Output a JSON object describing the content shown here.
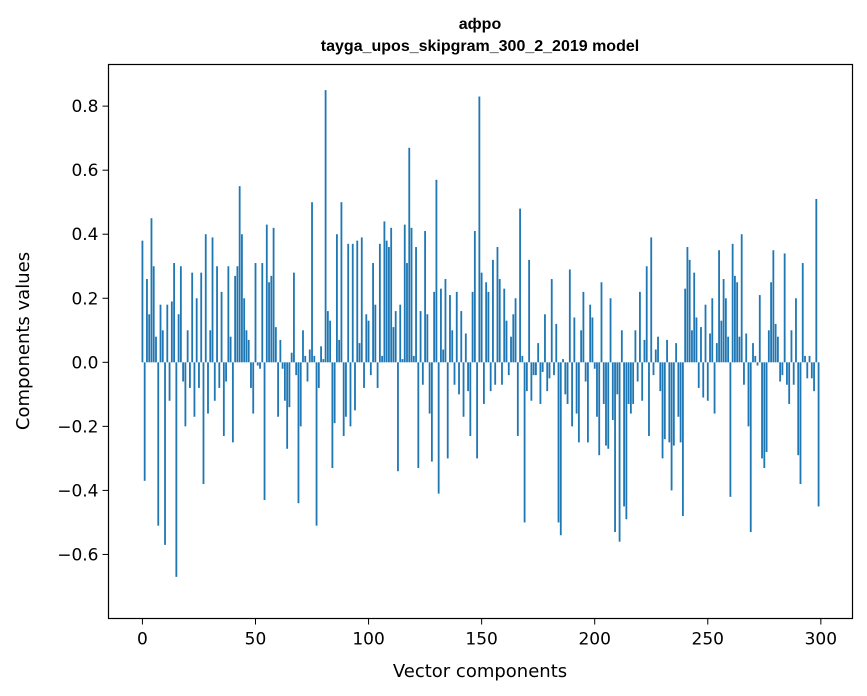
{
  "chart_data": {
    "type": "bar",
    "title": "афро",
    "subtitle": "tayga_upos_skipgram_300_2_2019 model",
    "xlabel": "Vector components",
    "ylabel": "Components values",
    "xlim": [
      -15,
      314
    ],
    "ylim": [
      -0.8,
      0.93
    ],
    "xticks": [
      0,
      50,
      100,
      150,
      200,
      250,
      300
    ],
    "yticks": [
      -0.6,
      -0.4,
      -0.2,
      0.0,
      0.2,
      0.4,
      0.6,
      0.8
    ],
    "ytick_labels": [
      "−0.6",
      "−0.4",
      "−0.2",
      "0.0",
      "0.2",
      "0.4",
      "0.6",
      "0.8"
    ],
    "bar_color": "#1f77b4",
    "x": [
      0,
      1,
      2,
      3,
      4,
      5,
      6,
      7,
      8,
      9,
      10,
      11,
      12,
      13,
      14,
      15,
      16,
      17,
      18,
      19,
      20,
      21,
      22,
      23,
      24,
      25,
      26,
      27,
      28,
      29,
      30,
      31,
      32,
      33,
      34,
      35,
      36,
      37,
      38,
      39,
      40,
      41,
      42,
      43,
      44,
      45,
      46,
      47,
      48,
      49,
      50,
      51,
      52,
      53,
      54,
      55,
      56,
      57,
      58,
      59,
      60,
      61,
      62,
      63,
      64,
      65,
      66,
      67,
      68,
      69,
      70,
      71,
      72,
      73,
      74,
      75,
      76,
      77,
      78,
      79,
      80,
      81,
      82,
      83,
      84,
      85,
      86,
      87,
      88,
      89,
      90,
      91,
      92,
      93,
      94,
      95,
      96,
      97,
      98,
      99,
      100,
      101,
      102,
      103,
      104,
      105,
      106,
      107,
      108,
      109,
      110,
      111,
      112,
      113,
      114,
      115,
      116,
      117,
      118,
      119,
      120,
      121,
      122,
      123,
      124,
      125,
      126,
      127,
      128,
      129,
      130,
      131,
      132,
      133,
      134,
      135,
      136,
      137,
      138,
      139,
      140,
      141,
      142,
      143,
      144,
      145,
      146,
      147,
      148,
      149,
      150,
      151,
      152,
      153,
      154,
      155,
      156,
      157,
      158,
      159,
      160,
      161,
      162,
      163,
      164,
      165,
      166,
      167,
      168,
      169,
      170,
      171,
      172,
      173,
      174,
      175,
      176,
      177,
      178,
      179,
      180,
      181,
      182,
      183,
      184,
      185,
      186,
      187,
      188,
      189,
      190,
      191,
      192,
      193,
      194,
      195,
      196,
      197,
      198,
      199,
      200,
      201,
      202,
      203,
      204,
      205,
      206,
      207,
      208,
      209,
      210,
      211,
      212,
      213,
      214,
      215,
      216,
      217,
      218,
      219,
      220,
      221,
      222,
      223,
      224,
      225,
      226,
      227,
      228,
      229,
      230,
      231,
      232,
      233,
      234,
      235,
      236,
      237,
      238,
      239,
      240,
      241,
      242,
      243,
      244,
      245,
      246,
      247,
      248,
      249,
      250,
      251,
      252,
      253,
      254,
      255,
      256,
      257,
      258,
      259,
      260,
      261,
      262,
      263,
      264,
      265,
      266,
      267,
      268,
      269,
      270,
      271,
      272,
      273,
      274,
      275,
      276,
      277,
      278,
      279,
      280,
      281,
      282,
      283,
      284,
      285,
      286,
      287,
      288,
      289,
      290,
      291,
      292,
      293,
      294,
      295,
      296,
      297,
      298,
      299
    ],
    "values": [
      0.38,
      -0.37,
      0.26,
      0.15,
      0.45,
      0.3,
      0.08,
      -0.51,
      0.18,
      0.1,
      -0.57,
      0.18,
      -0.12,
      0.19,
      0.31,
      -0.67,
      0.15,
      0.3,
      -0.06,
      -0.2,
      0.1,
      -0.08,
      0.28,
      -0.17,
      0.2,
      -0.08,
      0.28,
      -0.38,
      0.4,
      -0.16,
      0.1,
      0.39,
      -0.12,
      0.3,
      -0.08,
      0.22,
      -0.23,
      -0.06,
      0.3,
      0.08,
      -0.25,
      0.27,
      0.3,
      0.55,
      0.4,
      0.2,
      0.1,
      0.07,
      -0.08,
      -0.16,
      0.31,
      -0.01,
      -0.02,
      0.31,
      -0.43,
      0.43,
      0.25,
      0.27,
      0.42,
      0.11,
      -0.17,
      0.07,
      -0.02,
      -0.12,
      -0.27,
      -0.14,
      0.03,
      0.28,
      -0.04,
      -0.44,
      -0.2,
      0.1,
      0.02,
      -0.06,
      0.04,
      0.5,
      0.02,
      -0.51,
      -0.08,
      0.05,
      0.01,
      0.85,
      0.16,
      0.13,
      -0.33,
      -0.19,
      0.4,
      0.07,
      0.5,
      -0.23,
      -0.17,
      0.37,
      -0.2,
      0.37,
      -0.15,
      0.38,
      0.06,
      0.39,
      -0.08,
      0.15,
      0.13,
      -0.04,
      0.31,
      0.18,
      -0.08,
      0.37,
      0.02,
      0.44,
      0.38,
      0.36,
      0.42,
      0.11,
      0.16,
      -0.34,
      0.18,
      0.01,
      0.43,
      0.31,
      0.67,
      0.42,
      0.02,
      0.36,
      -0.33,
      0.16,
      -0.07,
      0.41,
      0.15,
      -0.16,
      -0.31,
      0.22,
      0.57,
      -0.41,
      0.23,
      0.04,
      0.26,
      -0.3,
      0.21,
      0.1,
      -0.07,
      0.22,
      -0.1,
      0.16,
      -0.17,
      0.09,
      -0.09,
      -0.23,
      0.22,
      0.41,
      -0.3,
      0.83,
      0.28,
      -0.13,
      0.25,
      0.22,
      -0.09,
      0.32,
      -0.07,
      0.36,
      0.26,
      -0.07,
      0.23,
      0.13,
      -0.04,
      0.08,
      0.15,
      0.2,
      -0.23,
      0.48,
      0.02,
      -0.5,
      -0.09,
      0.32,
      -0.12,
      -0.04,
      -0.04,
      0.06,
      -0.13,
      -0.03,
      0.15,
      -0.09,
      -0.05,
      0.26,
      -0.04,
      0.12,
      -0.5,
      -0.54,
      0.01,
      -0.1,
      -0.13,
      0.29,
      -0.2,
      0.14,
      -0.16,
      -0.25,
      0.1,
      0.22,
      -0.06,
      -0.25,
      0.18,
      0.14,
      -0.02,
      -0.17,
      -0.29,
      0.25,
      -0.13,
      -0.26,
      -0.27,
      0.2,
      -0.18,
      -0.53,
      -0.1,
      -0.56,
      0.1,
      -0.45,
      -0.49,
      -0.13,
      -0.16,
      -0.13,
      0.1,
      -0.06,
      0.22,
      -0.12,
      0.07,
      0.3,
      -0.23,
      0.39,
      -0.04,
      0.04,
      0.08,
      -0.09,
      -0.3,
      -0.24,
      0.07,
      -0.25,
      -0.4,
      -0.26,
      0.06,
      -0.17,
      -0.25,
      -0.48,
      0.23,
      0.36,
      0.32,
      0.1,
      0.28,
      0.14,
      -0.08,
      0.11,
      -0.11,
      0.18,
      -0.12,
      0.09,
      0.2,
      -0.16,
      0.06,
      0.35,
      0.13,
      0.26,
      0.2,
      0.08,
      -0.42,
      0.37,
      0.27,
      0.25,
      0.08,
      0.4,
      -0.07,
      0.09,
      -0.2,
      -0.53,
      0.06,
      0.02,
      -0.01,
      0.21,
      -0.3,
      -0.33,
      -0.28,
      0.1,
      0.25,
      0.35,
      0.12,
      0.08,
      -0.06,
      -0.04,
      0.34,
      -0.07,
      -0.13,
      0.1,
      -0.07,
      0.2,
      -0.29,
      -0.38,
      0.31,
      0.02,
      -0.05,
      0.02,
      -0.05,
      -0.09,
      0.51,
      -0.45
    ]
  }
}
